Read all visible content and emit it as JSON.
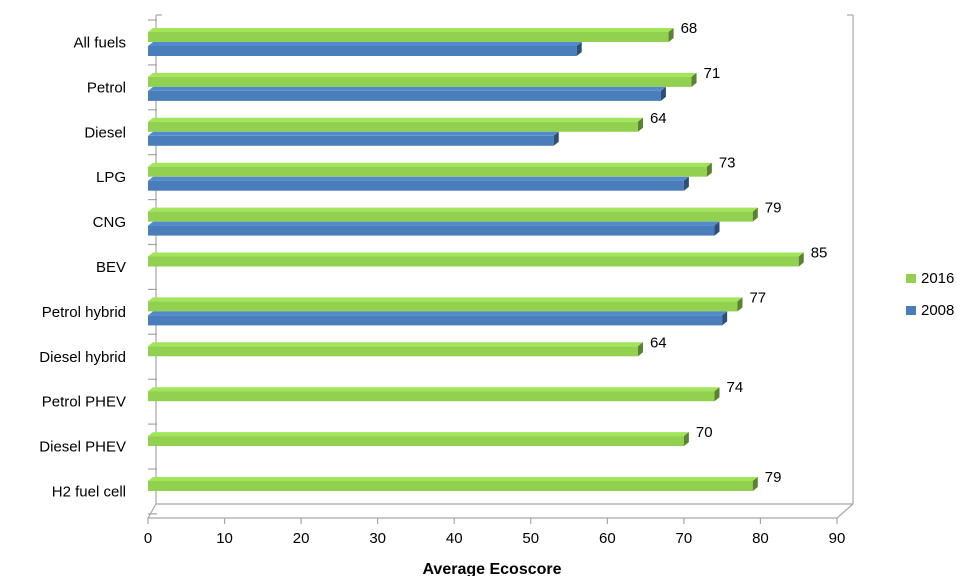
{
  "chart_data": {
    "type": "bar",
    "orientation": "horizontal",
    "categories": [
      "All fuels",
      "Petrol",
      "Diesel",
      "LPG",
      "CNG",
      "BEV",
      "Petrol hybrid",
      "Diesel hybrid",
      "Petrol PHEV",
      "Diesel PHEV",
      "H2 fuel cell"
    ],
    "series": [
      {
        "name": "2016",
        "color": "#92d050",
        "values": [
          68,
          71,
          64,
          73,
          79,
          85,
          77,
          64,
          74,
          70,
          79
        ],
        "show_labels": true
      },
      {
        "name": "2008",
        "color": "#4a7ebb",
        "values": [
          56,
          67,
          53,
          70,
          74,
          null,
          75,
          null,
          null,
          null,
          null
        ],
        "show_labels": false
      }
    ],
    "xlabel": "Average Ecoscore",
    "xlim": [
      0,
      90
    ],
    "xticks": [
      0,
      10,
      20,
      30,
      40,
      50,
      60,
      70,
      80,
      90
    ],
    "grid": false,
    "legend_position": "right",
    "style": "3d-clustered-bar"
  }
}
